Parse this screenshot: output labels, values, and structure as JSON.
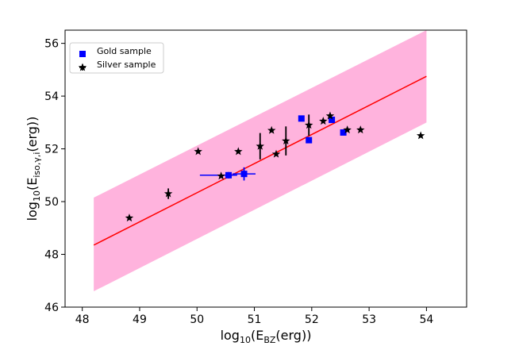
{
  "chart_data": {
    "type": "scatter",
    "title": "",
    "xlabel": "log10(E_BZ(erg))",
    "ylabel": "log10(E_iso,γ,i(erg))",
    "xlim": [
      47.7,
      54.7
    ],
    "ylim": [
      46.0,
      56.5
    ],
    "x_ticks": [
      "48",
      "49",
      "50",
      "51",
      "52",
      "53",
      "54"
    ],
    "y_ticks": [
      "46",
      "48",
      "50",
      "52",
      "54",
      "56"
    ],
    "grid": false,
    "legend_position": "top-left",
    "fit_line": {
      "color": "#ff0000",
      "points": [
        [
          48.2,
          48.35
        ],
        [
          54.0,
          54.75
        ]
      ]
    },
    "band": {
      "color": "#ffb3dd",
      "upper": [
        [
          48.2,
          50.15
        ],
        [
          54.0,
          56.5
        ]
      ],
      "lower": [
        [
          48.2,
          46.6
        ],
        [
          54.0,
          53.0
        ]
      ]
    },
    "series": [
      {
        "name": "Gold sample",
        "marker": "square",
        "color": "#0000ff",
        "points": [
          {
            "x": 50.55,
            "y": 51.0,
            "xerr": [
              0.5,
              0.15
            ],
            "yerr": 0.12
          },
          {
            "x": 50.82,
            "y": 51.05,
            "xerr": 0.2,
            "yerr": 0.25
          },
          {
            "x": 51.82,
            "y": 53.15
          },
          {
            "x": 51.95,
            "y": 52.33
          },
          {
            "x": 52.35,
            "y": 53.1
          },
          {
            "x": 52.55,
            "y": 52.62
          }
        ]
      },
      {
        "name": "Silver sample",
        "marker": "star",
        "color": "#000000",
        "points": [
          {
            "x": 48.82,
            "y": 49.38
          },
          {
            "x": 49.5,
            "y": 50.3,
            "yerr": 0.2
          },
          {
            "x": 50.02,
            "y": 51.9
          },
          {
            "x": 50.42,
            "y": 50.97
          },
          {
            "x": 50.72,
            "y": 51.9
          },
          {
            "x": 51.1,
            "y": 52.1,
            "yerr": 0.5
          },
          {
            "x": 51.3,
            "y": 52.7
          },
          {
            "x": 51.38,
            "y": 51.8
          },
          {
            "x": 51.55,
            "y": 52.3,
            "yerr": 0.55
          },
          {
            "x": 51.95,
            "y": 52.9,
            "yerr": 0.4
          },
          {
            "x": 52.2,
            "y": 53.05
          },
          {
            "x": 52.32,
            "y": 53.25
          },
          {
            "x": 52.62,
            "y": 52.72
          },
          {
            "x": 52.85,
            "y": 52.72
          },
          {
            "x": 53.9,
            "y": 52.5
          }
        ]
      }
    ]
  },
  "legend": {
    "items": [
      {
        "label": "Gold sample"
      },
      {
        "label": "Silver sample"
      }
    ]
  }
}
